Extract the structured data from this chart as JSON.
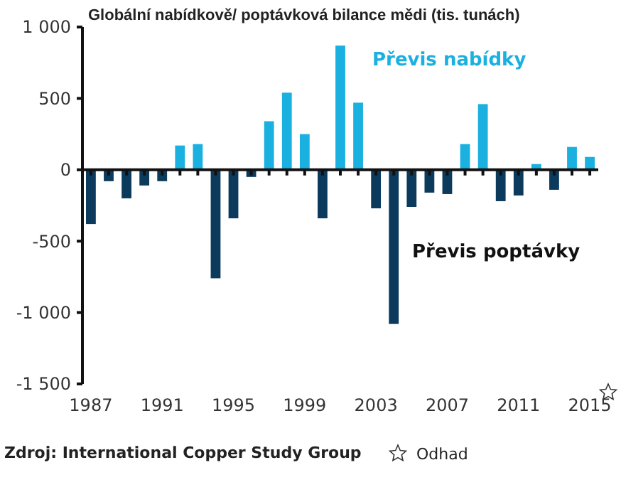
{
  "chart_data": {
    "type": "bar",
    "title": "Globální nabídkově/ poptávková bilance mědi (tis. tunách)",
    "categories": [
      "1987",
      null,
      null,
      null,
      "1991",
      null,
      null,
      null,
      "1995",
      null,
      null,
      null,
      "1999",
      null,
      null,
      null,
      "2003",
      null,
      null,
      null,
      "2007",
      null,
      null,
      null,
      "2011",
      null,
      null,
      null,
      "2015"
    ],
    "values": [
      -380,
      -80,
      -200,
      -110,
      -80,
      170,
      180,
      -760,
      -340,
      -50,
      340,
      540,
      250,
      -340,
      870,
      470,
      -270,
      -1080,
      -260,
      -160,
      -170,
      180,
      460,
      -220,
      -180,
      40,
      -140,
      160,
      90
    ],
    "colors": [
      "#0b3a5c",
      "#0b3a5c",
      "#0b3a5c",
      "#0b3a5c",
      "#0b3a5c",
      "#1ab0e0",
      "#1ab0e0",
      "#0b3a5c",
      "#0b3a5c",
      "#0b3a5c",
      "#1ab0e0",
      "#1ab0e0",
      "#1ab0e0",
      "#0b3a5c",
      "#1ab0e0",
      "#1ab0e0",
      "#0b3a5c",
      "#0b3a5c",
      "#0b3a5c",
      "#0b3a5c",
      "#0b3a5c",
      "#1ab0e0",
      "#1ab0e0",
      "#0b3a5c",
      "#0b3a5c",
      "#1ab0e0",
      "#0b3a5c",
      "#1ab0e0",
      "#1ab0e0"
    ],
    "ylim": [
      -1500,
      1000
    ],
    "yticks": [
      {
        "value": -1500,
        "label": "-1 500"
      },
      {
        "value": -1000,
        "label": "-1 000"
      },
      -500,
      0,
      500,
      {
        "value": 1000,
        "label": "1 000"
      }
    ],
    "annotations": [
      "Převis nabídky",
      "Převis poptávky",
      "Zdroj: International Copper Study Group",
      "Odhad"
    ]
  }
}
